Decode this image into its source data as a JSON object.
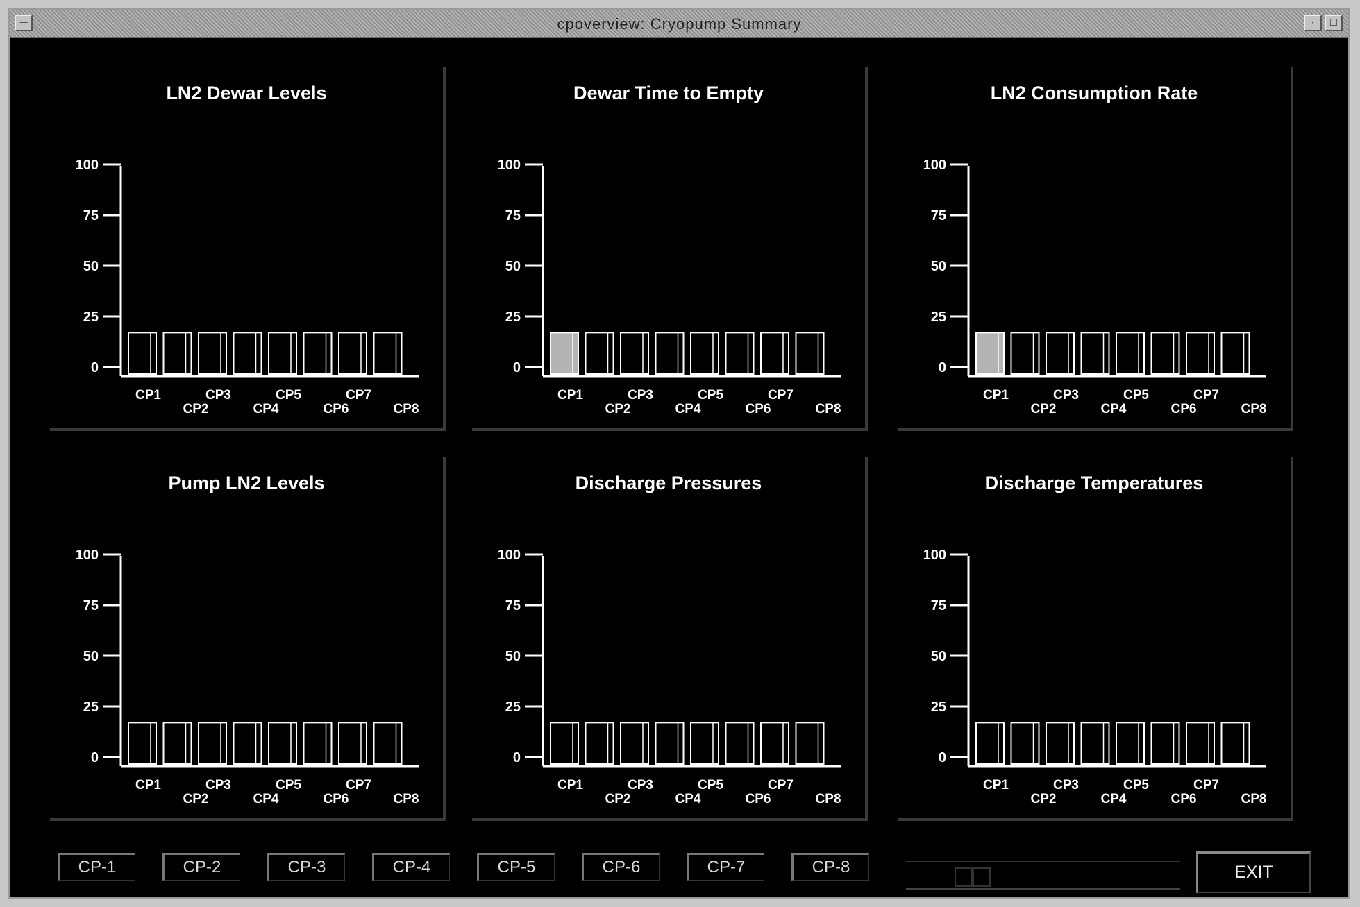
{
  "window": {
    "title": "cpoverview: Cryopump Summary",
    "background": "#000000",
    "menu_icon": "window-menu-icon",
    "minimize_icon": "minimize-icon",
    "maximize_icon": "maximize-icon"
  },
  "chart_data": [
    {
      "type": "bar",
      "title": "LN2 Dewar Levels",
      "categories": [
        "CP1",
        "CP2",
        "CP3",
        "CP4",
        "CP5",
        "CP6",
        "CP7",
        "CP8"
      ],
      "values": [
        17,
        17,
        17,
        17,
        17,
        17,
        17,
        17
      ],
      "highlighted": [],
      "yticks": [
        "100",
        "75",
        "50",
        "25",
        "0"
      ],
      "ylim": [
        0,
        100
      ],
      "xlabel": "",
      "ylabel": ""
    },
    {
      "type": "bar",
      "title": "Dewar Time to Empty",
      "categories": [
        "CP1",
        "CP2",
        "CP3",
        "CP4",
        "CP5",
        "CP6",
        "CP7",
        "CP8"
      ],
      "values": [
        17,
        17,
        17,
        17,
        17,
        17,
        17,
        17
      ],
      "highlighted": [
        "CP1"
      ],
      "yticks": [
        "100",
        "75",
        "50",
        "25",
        "0"
      ],
      "ylim": [
        0,
        100
      ],
      "xlabel": "",
      "ylabel": ""
    },
    {
      "type": "bar",
      "title": "LN2 Consumption Rate",
      "categories": [
        "CP1",
        "CP2",
        "CP3",
        "CP4",
        "CP5",
        "CP6",
        "CP7",
        "CP8"
      ],
      "values": [
        17,
        17,
        17,
        17,
        17,
        17,
        17,
        17
      ],
      "highlighted": [
        "CP1"
      ],
      "yticks": [
        "100",
        "75",
        "50",
        "25",
        "0"
      ],
      "ylim": [
        0,
        100
      ],
      "xlabel": "",
      "ylabel": ""
    },
    {
      "type": "bar",
      "title": "Pump LN2 Levels",
      "categories": [
        "CP1",
        "CP2",
        "CP3",
        "CP4",
        "CP5",
        "CP6",
        "CP7",
        "CP8"
      ],
      "values": [
        17,
        17,
        17,
        17,
        17,
        17,
        17,
        17
      ],
      "highlighted": [],
      "yticks": [
        "100",
        "75",
        "50",
        "25",
        "0"
      ],
      "ylim": [
        0,
        100
      ],
      "xlabel": "",
      "ylabel": ""
    },
    {
      "type": "bar",
      "title": "Discharge Pressures",
      "categories": [
        "CP1",
        "CP2",
        "CP3",
        "CP4",
        "CP5",
        "CP6",
        "CP7",
        "CP8"
      ],
      "values": [
        17,
        17,
        17,
        17,
        17,
        17,
        17,
        17
      ],
      "highlighted": [],
      "yticks": [
        "100",
        "75",
        "50",
        "25",
        "0"
      ],
      "ylim": [
        0,
        100
      ],
      "xlabel": "",
      "ylabel": ""
    },
    {
      "type": "bar",
      "title": "Discharge Temperatures",
      "categories": [
        "CP1",
        "CP2",
        "CP3",
        "CP4",
        "CP5",
        "CP6",
        "CP7",
        "CP8"
      ],
      "values": [
        17,
        17,
        17,
        17,
        17,
        17,
        17,
        17
      ],
      "highlighted": [],
      "yticks": [
        "100",
        "75",
        "50",
        "25",
        "0"
      ],
      "ylim": [
        0,
        100
      ],
      "xlabel": "",
      "ylabel": ""
    }
  ],
  "colors": {
    "bar_outline": "#ffffff",
    "bar_fill": "#000000",
    "bar_highlight": "#b4b4b4",
    "axis": "#ffffff"
  },
  "buttons": {
    "cp": [
      "CP-1",
      "CP-2",
      "CP-3",
      "CP-4",
      "CP-5",
      "CP-6",
      "CP-7",
      "CP-8"
    ],
    "exit": "EXIT"
  }
}
